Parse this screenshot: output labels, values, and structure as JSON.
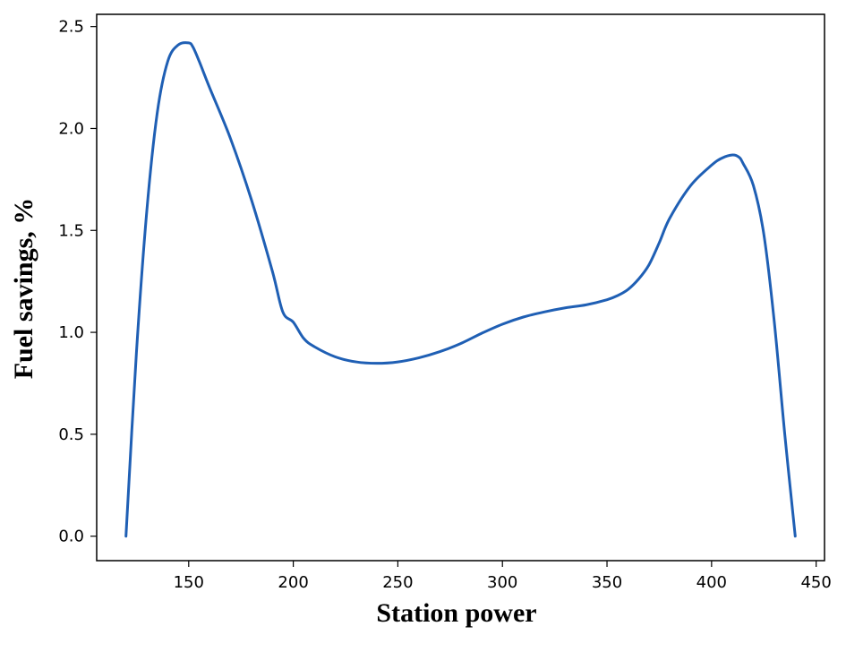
{
  "chart_data": {
    "type": "line",
    "title": "",
    "xlabel": "Station power",
    "ylabel": "Fuel savings, %",
    "xlim": [
      106,
      454
    ],
    "ylim": [
      -0.12,
      2.56
    ],
    "xticks": [
      150,
      200,
      250,
      300,
      350,
      400,
      450
    ],
    "xtick_labels": [
      "150",
      "200",
      "250",
      "300",
      "350",
      "400",
      "450"
    ],
    "yticks": [
      0.0,
      0.5,
      1.0,
      1.5,
      2.0,
      2.5
    ],
    "ytick_labels": [
      "0.0",
      "0.5",
      "1.0",
      "1.5",
      "2.0",
      "2.5"
    ],
    "grid": false,
    "line_color": "#1f5fb4",
    "series": [
      {
        "x": [
          120,
          125,
          130,
          135,
          140,
          145,
          150,
          152,
          155,
          160,
          170,
          180,
          190,
          195,
          200,
          205,
          210,
          220,
          230,
          240,
          250,
          260,
          270,
          280,
          290,
          300,
          310,
          320,
          330,
          340,
          350,
          355,
          360,
          365,
          370,
          375,
          380,
          390,
          400,
          405,
          410,
          413,
          415,
          420,
          425,
          430,
          435,
          440
        ],
        "y": [
          0.0,
          0.9,
          1.6,
          2.08,
          2.33,
          2.41,
          2.42,
          2.4,
          2.33,
          2.2,
          1.95,
          1.65,
          1.3,
          1.1,
          1.05,
          0.97,
          0.93,
          0.88,
          0.855,
          0.848,
          0.855,
          0.875,
          0.905,
          0.945,
          0.995,
          1.04,
          1.075,
          1.1,
          1.12,
          1.135,
          1.16,
          1.18,
          1.21,
          1.26,
          1.33,
          1.44,
          1.56,
          1.72,
          1.82,
          1.855,
          1.87,
          1.86,
          1.83,
          1.72,
          1.48,
          1.05,
          0.5,
          0.0
        ]
      }
    ]
  }
}
